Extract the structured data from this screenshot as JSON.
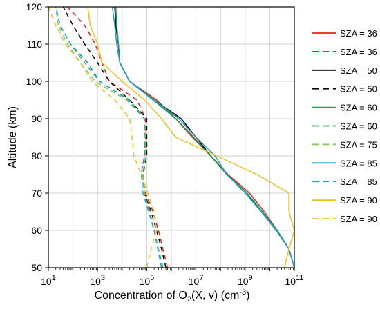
{
  "chart_data": {
    "type": "line",
    "xlabel_main": "Concentration of O",
    "xlabel_sub": "2",
    "xlabel_mid": "(X, v) (cm",
    "xlabel_sup": "-3",
    "xlabel_end": ")",
    "ylabel": "Altitude (km)",
    "x_scale": "log",
    "xlim": [
      10,
      100000000000
    ],
    "ylim": [
      50,
      120
    ],
    "grid": true,
    "legend_position": "right",
    "x_ticks": [
      {
        "value": 10,
        "base": "10",
        "exp": "1"
      },
      {
        "value": 1000,
        "base": "10",
        "exp": "3"
      },
      {
        "value": 100000,
        "base": "10",
        "exp": "5"
      },
      {
        "value": 10000000,
        "base": "10",
        "exp": "7"
      },
      {
        "value": 1000000000,
        "base": "10",
        "exp": "9"
      },
      {
        "value": 100000000000,
        "base": "10",
        "exp": "11"
      }
    ],
    "y_ticks": [
      50,
      60,
      70,
      80,
      90,
      100,
      110,
      120
    ],
    "altitudes": [
      50,
      55,
      60,
      65,
      70,
      75,
      80,
      85,
      90,
      95,
      100,
      105,
      110,
      115,
      120
    ],
    "series": [
      {
        "name": "SZA = 36",
        "color": "#e8211b",
        "dashed": false,
        "values": [
          100000000000,
          60000000000,
          20000000000,
          6000000000,
          1500000000,
          200000000,
          40000000,
          8000000,
          1500000,
          250000,
          20000,
          8000,
          7000,
          6000,
          5000
        ]
      },
      {
        "name": "SZA = 36",
        "color": "#e8211b",
        "dashed": true,
        "values": [
          700000,
          450000,
          300000,
          180000,
          90000,
          60000,
          80000,
          90000,
          90000,
          40000,
          3000,
          1500,
          800,
          300,
          60
        ]
      },
      {
        "name": "SZA = 50",
        "color": "#000000",
        "dashed": false,
        "values": [
          100000000000,
          60000000000,
          20000000000,
          4500000000,
          1200000000,
          180000000,
          40000000,
          10000000,
          2500000,
          200000,
          20000,
          8000,
          7000,
          5500,
          5000
        ]
      },
      {
        "name": "SZA = 50",
        "color": "#000000",
        "dashed": true,
        "values": [
          600000,
          400000,
          250000,
          150000,
          80000,
          70000,
          100000,
          100000,
          100000,
          20000,
          3000,
          1000,
          300,
          100,
          40
        ]
      },
      {
        "name": "SZA = 60",
        "color": "#1a9e4b",
        "dashed": false,
        "values": [
          100000000000,
          60000000000,
          20000000000,
          5000000000,
          1200000000,
          180000000,
          40000000,
          7000000,
          1500000,
          180000,
          20000,
          8000,
          7000,
          6000,
          5500
        ]
      },
      {
        "name": "SZA = 60",
        "color": "#1a9e4b",
        "dashed": true,
        "values": [
          450000,
          300000,
          200000,
          130000,
          80000,
          70000,
          90000,
          90000,
          80000,
          20000,
          1200,
          400,
          80,
          30,
          20
        ]
      },
      {
        "name": "SZA = 75",
        "color": "#7ec94b",
        "dashed": true,
        "values": [
          400000,
          300000,
          200000,
          120000,
          80000,
          70000,
          90000,
          90000,
          80000,
          15000,
          800,
          200,
          60,
          25,
          20
        ]
      },
      {
        "name": "SZA = 85",
        "color": "#1f9fd9",
        "dashed": false,
        "values": [
          100000000000,
          60000000000,
          18000000000,
          4500000000,
          1000000000,
          180000000,
          60000000,
          10000000,
          2000000,
          200000,
          20000,
          8000,
          6000,
          5000,
          4000
        ]
      },
      {
        "name": "SZA = 85",
        "color": "#1f9fd9",
        "dashed": true,
        "values": [
          400000,
          280000,
          200000,
          120000,
          70000,
          60000,
          80000,
          80000,
          80000,
          18000,
          1200,
          300,
          80,
          30,
          20
        ]
      },
      {
        "name": "SZA = 90",
        "color": "#f2c01c",
        "dashed": false,
        "values": [
          40000000000,
          60000000000,
          100000000000,
          60000000000,
          60000000000,
          3000000000,
          70000000,
          1500000,
          400000,
          80000,
          10000,
          1500,
          1000,
          500,
          400
        ]
      },
      {
        "name": "SZA = 90",
        "color": "#f2c01c",
        "dashed": true,
        "values": [
          100000,
          150000,
          250000,
          200000,
          110000,
          60000,
          30000,
          25000,
          20000,
          5000,
          600,
          200,
          50,
          20,
          10
        ]
      }
    ]
  }
}
